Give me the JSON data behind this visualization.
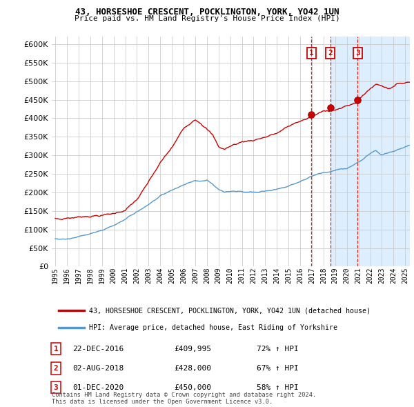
{
  "title1": "43, HORSESHOE CRESCENT, POCKLINGTON, YORK, YO42 1UN",
  "title2": "Price paid vs. HM Land Registry's House Price Index (HPI)",
  "legend1": "43, HORSESHOE CRESCENT, POCKLINGTON, YORK, YO42 1UN (detached house)",
  "legend2": "HPI: Average price, detached house, East Riding of Yorkshire",
  "transactions": [
    {
      "label": "1",
      "date": "22-DEC-2016",
      "price": 409995,
      "hpi_pct": "72%",
      "year": 2016.97
    },
    {
      "label": "2",
      "date": "02-AUG-2018",
      "price": 428000,
      "hpi_pct": "67%",
      "year": 2018.58
    },
    {
      "label": "3",
      "date": "01-DEC-2020",
      "price": 450000,
      "hpi_pct": "58%",
      "year": 2020.92
    }
  ],
  "footer": "Contains HM Land Registry data © Crown copyright and database right 2024.\nThis data is licensed under the Open Government Licence v3.0.",
  "red_color": "#cc0000",
  "blue_color": "#5599cc",
  "shade_color": "#ddeeff",
  "grid_color": "#cccccc",
  "bg_color": "#ffffff",
  "ylim": [
    0,
    620000
  ],
  "yticks": [
    0,
    50000,
    100000,
    150000,
    200000,
    250000,
    300000,
    350000,
    400000,
    450000,
    500000,
    550000,
    600000
  ],
  "xlim_start": 1994.7,
  "xlim_end": 2025.4,
  "shade_start": 2018.58,
  "shade_end": 2025.4
}
